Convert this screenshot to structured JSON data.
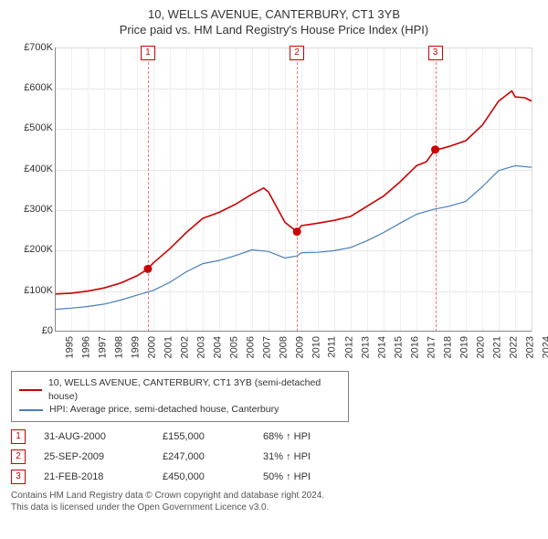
{
  "title": "10, WELLS AVENUE, CANTERBURY, CT1 3YB",
  "subtitle": "Price paid vs. HM Land Registry's House Price Index (HPI)",
  "chart": {
    "type": "line",
    "background_color": "#ffffff",
    "grid_color": "#e8e8e8",
    "minor_grid_color": "#efefef",
    "axis_color": "#888888",
    "pane_border_color": "#d9d9d9",
    "x": {
      "min": 1995,
      "max": 2024,
      "labels": [
        1995,
        1996,
        1997,
        1998,
        1999,
        2000,
        2001,
        2002,
        2003,
        2004,
        2005,
        2006,
        2007,
        2008,
        2009,
        2010,
        2011,
        2012,
        2013,
        2014,
        2015,
        2016,
        2017,
        2018,
        2019,
        2020,
        2021,
        2022,
        2023,
        2024
      ]
    },
    "y": {
      "min": 0,
      "max": 700000,
      "step": 100000,
      "labels": [
        "£0",
        "£100K",
        "£200K",
        "£300K",
        "£400K",
        "£500K",
        "£600K",
        "£700K"
      ]
    },
    "series": [
      {
        "id": "property",
        "label": "10, WELLS AVENUE, CANTERBURY, CT1 3YB (semi-detached house)",
        "color": "#cc0000",
        "width": 1.6,
        "data": [
          [
            1995,
            93000
          ],
          [
            1996,
            95000
          ],
          [
            1997,
            100000
          ],
          [
            1998,
            108000
          ],
          [
            1999,
            120000
          ],
          [
            2000,
            138000
          ],
          [
            2000.66,
            155000
          ],
          [
            2001,
            170000
          ],
          [
            2002,
            205000
          ],
          [
            2003,
            245000
          ],
          [
            2004,
            280000
          ],
          [
            2005,
            295000
          ],
          [
            2006,
            315000
          ],
          [
            2007,
            340000
          ],
          [
            2007.7,
            355000
          ],
          [
            2008,
            345000
          ],
          [
            2008.6,
            300000
          ],
          [
            2009,
            270000
          ],
          [
            2009.73,
            247000
          ],
          [
            2010,
            262000
          ],
          [
            2011,
            268000
          ],
          [
            2012,
            275000
          ],
          [
            2013,
            285000
          ],
          [
            2014,
            310000
          ],
          [
            2015,
            335000
          ],
          [
            2016,
            370000
          ],
          [
            2017,
            410000
          ],
          [
            2017.6,
            420000
          ],
          [
            2018.14,
            450000
          ],
          [
            2018.5,
            452000
          ],
          [
            2019,
            458000
          ],
          [
            2020,
            472000
          ],
          [
            2021,
            510000
          ],
          [
            2022,
            570000
          ],
          [
            2022.8,
            595000
          ],
          [
            2023,
            580000
          ],
          [
            2023.6,
            578000
          ],
          [
            2024,
            570000
          ]
        ]
      },
      {
        "id": "hpi",
        "label": "HPI: Average price, semi-detached house, Canterbury",
        "color": "#4a7ebb",
        "width": 1.2,
        "data": [
          [
            1995,
            55000
          ],
          [
            1996,
            58000
          ],
          [
            1997,
            62000
          ],
          [
            1998,
            68000
          ],
          [
            1999,
            78000
          ],
          [
            2000,
            90000
          ],
          [
            2001,
            102000
          ],
          [
            2002,
            122000
          ],
          [
            2003,
            148000
          ],
          [
            2004,
            168000
          ],
          [
            2005,
            176000
          ],
          [
            2006,
            188000
          ],
          [
            2007,
            202000
          ],
          [
            2008,
            198000
          ],
          [
            2009,
            182000
          ],
          [
            2009.73,
            187000
          ],
          [
            2010,
            195000
          ],
          [
            2011,
            196000
          ],
          [
            2012,
            200000
          ],
          [
            2013,
            208000
          ],
          [
            2014,
            225000
          ],
          [
            2015,
            245000
          ],
          [
            2016,
            268000
          ],
          [
            2017,
            290000
          ],
          [
            2018,
            302000
          ],
          [
            2019,
            310000
          ],
          [
            2020,
            322000
          ],
          [
            2021,
            358000
          ],
          [
            2022,
            398000
          ],
          [
            2023,
            410000
          ],
          [
            2024,
            406000
          ]
        ]
      }
    ],
    "markers": [
      {
        "x": 2000.66,
        "y": 155000
      },
      {
        "x": 2009.73,
        "y": 247000
      },
      {
        "x": 2018.14,
        "y": 450000
      }
    ],
    "event_lines": [
      {
        "num": "1",
        "x": 2000.66
      },
      {
        "num": "2",
        "x": 2009.73
      },
      {
        "num": "3",
        "x": 2018.14
      }
    ]
  },
  "legend": {
    "items": [
      {
        "color": "#cc0000",
        "text": "10, WELLS AVENUE, CANTERBURY, CT1 3YB (semi-detached house)"
      },
      {
        "color": "#4a7ebb",
        "text": "HPI: Average price, semi-detached house, Canterbury"
      }
    ]
  },
  "events": [
    {
      "num": "1",
      "date": "31-AUG-2000",
      "price": "£155,000",
      "pct": "68% ↑ HPI"
    },
    {
      "num": "2",
      "date": "25-SEP-2009",
      "price": "£247,000",
      "pct": "31% ↑ HPI"
    },
    {
      "num": "3",
      "date": "21-FEB-2018",
      "price": "£450,000",
      "pct": "50% ↑ HPI"
    }
  ],
  "footer": {
    "line1": "Contains HM Land Registry data © Crown copyright and database right 2024.",
    "line2": "This data is licensed under the Open Government Licence v3.0."
  }
}
